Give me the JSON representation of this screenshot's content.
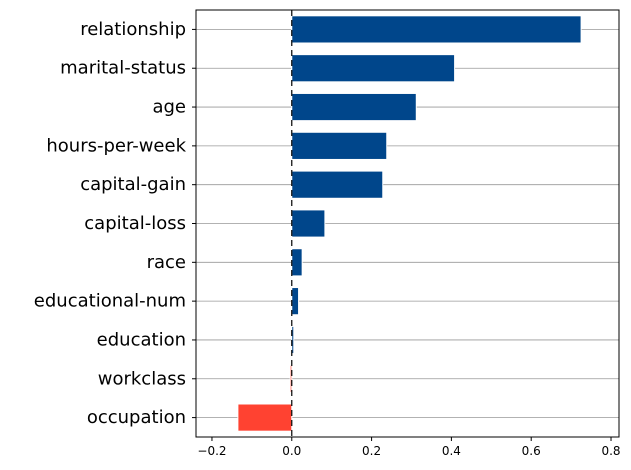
{
  "chart_data": {
    "type": "bar",
    "orientation": "horizontal",
    "categories": [
      "relationship",
      "marital-status",
      "age",
      "hours-per-week",
      "capital-gain",
      "capital-loss",
      "race",
      "educational-num",
      "education",
      "workclass",
      "occupation"
    ],
    "values": [
      0.725,
      0.408,
      0.312,
      0.238,
      0.228,
      0.083,
      0.026,
      0.017,
      0.005,
      -0.004,
      -0.135
    ],
    "xlim": [
      -0.24,
      0.82
    ],
    "xticks": [
      -0.2,
      0.0,
      0.2,
      0.4,
      0.6,
      0.8
    ],
    "xtick_labels": [
      "−0.2",
      "0.0",
      "0.2",
      "0.4",
      "0.6",
      "0.8"
    ],
    "grid": "horizontal lines at each category",
    "zero_line": "dashed black vertical line at 0",
    "colors": {
      "positive": "#00468b",
      "negative": "#ff4231",
      "bar_edge": "#ffffff",
      "grid": "#999999",
      "axes": "#000000"
    },
    "title": "",
    "xlabel": "",
    "ylabel": ""
  }
}
